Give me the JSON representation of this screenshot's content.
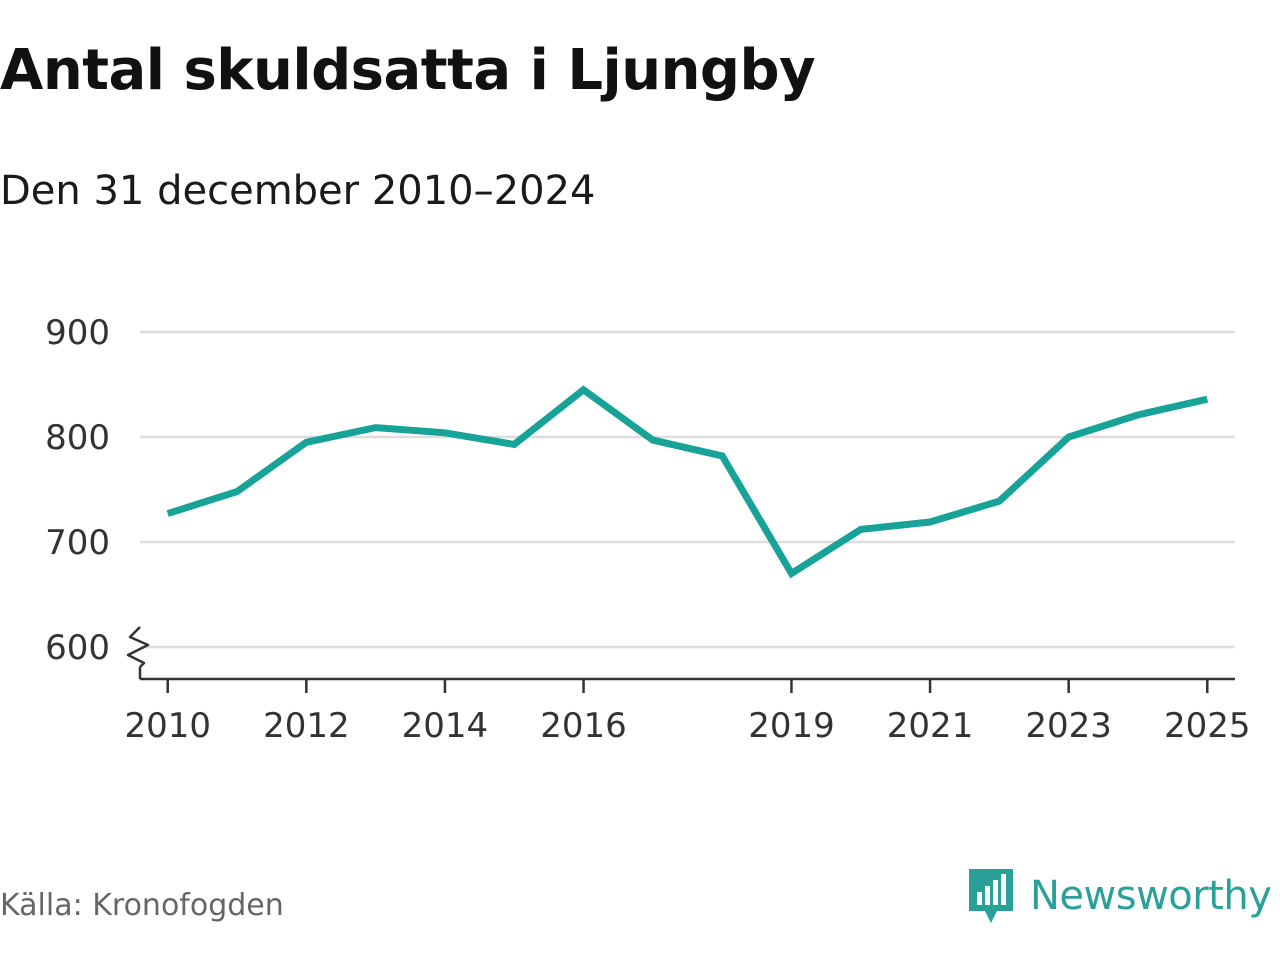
{
  "title": "Antal skuldsatta i Ljungby",
  "subtitle": "Den 31 december 2010–2024",
  "source": "Källa: Kronofogden",
  "brand": {
    "name": "Newsworthy",
    "logo_icon": "newsworthy-bar-chart-icon"
  },
  "colors": {
    "line": "#17a398",
    "grid": "#dddddd",
    "axis": "#333333",
    "brand": "#2aa198"
  },
  "chart_data": {
    "type": "line",
    "title": "Antal skuldsatta i Ljungby",
    "subtitle": "Den 31 december 2010–2024",
    "xlabel": "",
    "ylabel": "",
    "ylim": [
      600,
      900
    ],
    "xlim": [
      2009.6,
      2025.4
    ],
    "axis_break": true,
    "grid": true,
    "y_ticks": [
      600,
      700,
      800,
      900
    ],
    "x_ticks": [
      2010,
      2012,
      2014,
      2016,
      2019,
      2021,
      2023,
      2025
    ],
    "series": [
      {
        "x": [
          2010,
          2011,
          2012,
          2013,
          2014,
          2015,
          2016,
          2017,
          2018,
          2019,
          2020,
          2021,
          2022,
          2023,
          2024,
          2025
        ],
        "y": [
          727,
          748,
          795,
          809,
          804,
          793,
          845,
          797,
          782,
          670,
          712,
          719,
          739,
          800,
          821,
          836
        ]
      }
    ]
  }
}
